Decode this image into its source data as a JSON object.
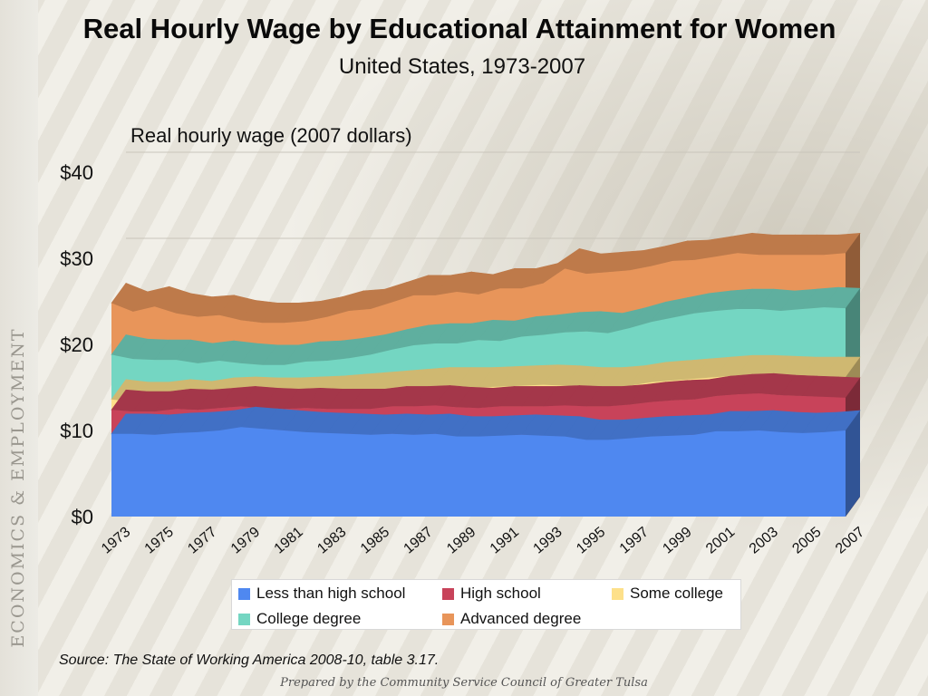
{
  "sidebar": {
    "label": "ECONOMICS & EMPLOYMENT"
  },
  "title": "Real Hourly Wage by Educational Attainment for Women",
  "subtitle": "United States, 1973-2007",
  "source": "Source:  The State of Working America 2008-10, table 3.17.",
  "footer": "Prepared by the Community Service Council of Greater Tulsa",
  "colors": {
    "less_than_high_school": "#4f88f0",
    "high_school": "#c8435a",
    "some_college": "#fde08a",
    "college_degree": "#74d6c2",
    "advanced_degree": "#e8955a"
  },
  "chart_data": {
    "type": "area",
    "stacked": true,
    "three_d": true,
    "title": "Real Hourly Wage by Educational Attainment for Women",
    "subtitle": "United States, 1973-2007",
    "ylabel": "Real hourly wage (2007 dollars)",
    "xlabel": "",
    "ylim": [
      0,
      40
    ],
    "y_ticks": [
      "$0",
      "$10",
      "$20",
      "$30",
      "$40"
    ],
    "x": [
      1973,
      1974,
      1975,
      1976,
      1977,
      1978,
      1979,
      1980,
      1981,
      1982,
      1983,
      1984,
      1985,
      1986,
      1987,
      1988,
      1989,
      1990,
      1991,
      1992,
      1993,
      1994,
      1995,
      1996,
      1997,
      1998,
      1999,
      2000,
      2001,
      2002,
      2003,
      2004,
      2005,
      2006,
      2007
    ],
    "x_tick_labels": [
      "1973",
      "1975",
      "1977",
      "1979",
      "1981",
      "1983",
      "1985",
      "1987",
      "1989",
      "1991",
      "1993",
      "1995",
      "1997",
      "1999",
      "2001",
      "2003",
      "2005",
      "2007"
    ],
    "grid": true,
    "legend": "bottom",
    "series": [
      {
        "name": "Less than high school",
        "color": "#4f88f0",
        "values": [
          9.6,
          9.6,
          9.5,
          9.7,
          9.8,
          10.0,
          10.4,
          10.2,
          10.0,
          9.8,
          9.7,
          9.6,
          9.5,
          9.6,
          9.5,
          9.6,
          9.3,
          9.3,
          9.4,
          9.5,
          9.4,
          9.3,
          8.9,
          8.9,
          9.1,
          9.3,
          9.4,
          9.5,
          9.9,
          9.9,
          10.0,
          9.8,
          9.7,
          9.8,
          10.0
        ]
      },
      {
        "name": "High school",
        "color": "#c8435a",
        "values": [
          12.4,
          12.2,
          12.2,
          12.5,
          12.4,
          12.6,
          12.8,
          12.6,
          12.5,
          12.6,
          12.5,
          12.5,
          12.5,
          12.8,
          12.8,
          12.9,
          12.7,
          12.6,
          12.8,
          12.8,
          12.8,
          12.9,
          12.8,
          12.8,
          13.0,
          13.3,
          13.5,
          13.6,
          14.0,
          14.2,
          14.3,
          14.1,
          14.0,
          13.9,
          13.8
        ]
      },
      {
        "name": "Some college",
        "color": "#fde08a",
        "values": [
          13.6,
          13.3,
          13.3,
          13.6,
          13.4,
          13.8,
          13.9,
          13.8,
          13.8,
          13.9,
          14.0,
          14.2,
          14.4,
          14.6,
          14.8,
          15.0,
          15.0,
          15.0,
          15.1,
          15.2,
          15.3,
          15.2,
          15.0,
          15.0,
          15.2,
          15.6,
          15.8,
          16.0,
          16.2,
          16.4,
          16.4,
          16.3,
          16.2,
          16.2,
          16.2
        ]
      },
      {
        "name": "College degree",
        "color": "#74d6c2",
        "values": [
          18.8,
          18.3,
          18.2,
          18.2,
          17.8,
          18.1,
          17.8,
          17.6,
          17.6,
          18.0,
          18.1,
          18.4,
          18.8,
          19.4,
          19.9,
          20.1,
          20.1,
          20.5,
          20.4,
          20.9,
          21.1,
          21.4,
          21.5,
          21.3,
          21.9,
          22.6,
          23.1,
          23.6,
          23.9,
          24.1,
          24.1,
          23.9,
          24.1,
          24.3,
          24.2
        ]
      },
      {
        "name": "Advanced degree",
        "color": "#e8955a",
        "values": [
          24.8,
          23.8,
          24.4,
          23.6,
          23.2,
          23.4,
          22.8,
          22.5,
          22.5,
          22.7,
          23.2,
          23.9,
          24.1,
          24.9,
          25.7,
          25.7,
          26.1,
          25.8,
          26.5,
          26.5,
          27.1,
          28.8,
          28.2,
          28.4,
          28.6,
          29.1,
          29.7,
          29.8,
          30.2,
          30.6,
          30.4,
          30.4,
          30.4,
          30.4,
          30.6
        ]
      }
    ]
  }
}
